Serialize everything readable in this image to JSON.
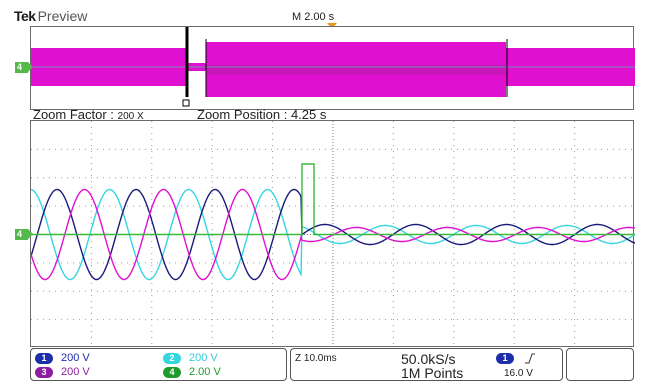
{
  "header": {
    "brand": "Tek",
    "status": "Preview",
    "horizontal_scale": "M 2.00 s"
  },
  "zoom": {
    "factor_label": "Zoom Factor :",
    "factor_value": "200 X",
    "position_label": "Zoom Position :",
    "position_value": "4.25 s"
  },
  "colors": {
    "ch1": "#1a1a7a",
    "ch2": "#36d6e0",
    "ch3": "#e010d0",
    "ch4": "#3cb83c",
    "trigger": "#e59a1e",
    "grid": "#9a9a9a"
  },
  "ground_markers": {
    "overview": "4",
    "main": "4"
  },
  "channels": [
    {
      "id": "1",
      "scale": "200 V",
      "color": "#1c2ea8",
      "text_color": "#1c2ea8"
    },
    {
      "id": "2",
      "scale": "200 V",
      "color": "#36d6e0",
      "text_color": "#36c8d8"
    },
    {
      "id": "3",
      "scale": "200 V",
      "color": "#8b1fa0",
      "text_color": "#8b1fa0"
    },
    {
      "id": "4",
      "scale": "2.00 V",
      "color": "#1f9a2e",
      "text_color": "#1f9a2e"
    }
  ],
  "timebase": {
    "zoom_scale": "Z 10.0ms",
    "sample_rate": "50.0kS/s",
    "record_length": "1M Points"
  },
  "trigger": {
    "source": "1",
    "slope_icon": "rising-edge-icon",
    "level": "16.0 V"
  }
}
